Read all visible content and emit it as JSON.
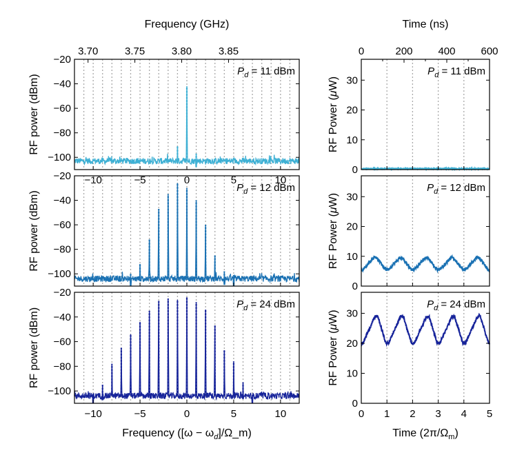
{
  "chart_data": [
    {
      "type": "line",
      "panel": "spectrum",
      "annotation": {
        "prefix": "P",
        "sub": "d",
        "text": " = 11 dBm"
      },
      "ylabel": "RF power (dBm)",
      "ylim": [
        -110,
        -20
      ],
      "yticks": [
        -20,
        -40,
        -60,
        -80,
        -100
      ],
      "xlim": [
        -12,
        12
      ],
      "xticks": [
        -10,
        -5,
        0,
        5,
        10
      ],
      "grid_x": [
        -11,
        -10,
        -9,
        -8,
        -7,
        -6,
        -5,
        -4,
        -3,
        -2,
        -1,
        0,
        1,
        2,
        3,
        4,
        5,
        6,
        7,
        8,
        9,
        10,
        11
      ],
      "top_xlabel": "Frequency (GHz)",
      "top_xticks": [
        "3.70",
        "3.75",
        "3.80",
        "3.85"
      ],
      "top_xtick_positions": [
        -10.55,
        -5.55,
        -0.55,
        4.45
      ],
      "noise_floor": -103,
      "color": "#3eb0d4",
      "peaks": {
        "x": [
          -1,
          0,
          1
        ],
        "y": [
          -91,
          -42,
          -97
        ]
      }
    },
    {
      "type": "line",
      "panel": "spectrum",
      "annotation": {
        "prefix": "P",
        "sub": "d",
        "text": " = 12 dBm"
      },
      "ylabel": "RF power (dBm)",
      "ylim": [
        -110,
        -20
      ],
      "yticks": [
        -20,
        -40,
        -60,
        -80,
        -100
      ],
      "xlim": [
        -12,
        12
      ],
      "grid_x": [
        -11,
        -10,
        -9,
        -8,
        -7,
        -6,
        -5,
        -4,
        -3,
        -2,
        -1,
        0,
        1,
        2,
        3,
        4,
        5,
        6,
        7,
        8,
        9,
        10,
        11
      ],
      "noise_floor": -104,
      "color": "#1a71b3",
      "peaks": {
        "x": [
          -6,
          -5,
          -4,
          -3,
          -2,
          -1,
          0,
          1,
          2,
          3,
          4,
          5
        ],
        "y": [
          -100,
          -92,
          -72,
          -47,
          -35,
          -26,
          -30,
          -40,
          -60,
          -85,
          -98,
          -101
        ]
      }
    },
    {
      "type": "line",
      "panel": "spectrum",
      "annotation": {
        "prefix": "P",
        "sub": "d",
        "text": " = 24 dBm"
      },
      "ylabel": "RF power (dBm)",
      "ylim": [
        -110,
        -20
      ],
      "yticks": [
        -20,
        -40,
        -60,
        -80,
        -100
      ],
      "xlim": [
        -12,
        12
      ],
      "xticks": [
        -10,
        -5,
        0,
        5,
        10
      ],
      "grid_x": [
        -11,
        -10,
        -9,
        -8,
        -7,
        -6,
        -5,
        -4,
        -3,
        -2,
        -1,
        0,
        1,
        2,
        3,
        4,
        5,
        6,
        7,
        8,
        9,
        10,
        11
      ],
      "xlabel": "Frequency ([ω − ω_d]/Ω_m)",
      "noise_floor": -104,
      "color": "#17249a",
      "peaks": {
        "x": [
          -10,
          -9,
          -8,
          -7,
          -6,
          -5,
          -4,
          -3,
          -2,
          -1,
          0,
          1,
          2,
          3,
          4,
          5,
          6,
          7
        ],
        "y": [
          -102,
          -95,
          -78,
          -65,
          -54,
          -44,
          -35,
          -27,
          -25,
          -26,
          -24,
          -28,
          -34,
          -47,
          -67,
          -76,
          -93,
          -103
        ]
      }
    },
    {
      "type": "line",
      "panel": "time",
      "annotation": {
        "prefix": "P",
        "sub": "d",
        "text": " = 11 dBm"
      },
      "ylabel": "RF Power (μW)",
      "ylim": [
        0,
        37
      ],
      "yticks": [
        0,
        10,
        20,
        30
      ],
      "xlim": [
        0,
        5
      ],
      "grid_x": [
        1,
        2,
        3,
        4
      ],
      "top_xlabel": "Time (ns)",
      "top_xticks": [
        "0",
        "200",
        "400",
        "600"
      ],
      "top_xtick_positions": [
        0,
        1.6667,
        3.3333,
        5
      ],
      "top_minor_positions": [
        0.8333,
        2.5,
        4.1667
      ],
      "color": "#3eb0d4",
      "signal": {
        "mean": 0.3,
        "amplitude": 0,
        "period": 1,
        "phase_max": 0.5
      }
    },
    {
      "type": "line",
      "panel": "time",
      "annotation": {
        "prefix": "P",
        "sub": "d",
        "text": " = 12 dBm"
      },
      "ylabel": "RF Power (μW)",
      "ylim": [
        0,
        37
      ],
      "yticks": [
        0,
        10,
        20,
        30
      ],
      "xlim": [
        0,
        5
      ],
      "grid_x": [
        1,
        2,
        3,
        4
      ],
      "color": "#1a71b3",
      "signal": {
        "mean": 7.5,
        "amplitude": 2,
        "period": 1,
        "phase_max": 0.55
      }
    },
    {
      "type": "line",
      "panel": "time",
      "annotation": {
        "prefix": "P",
        "sub": "d",
        "text": " = 24 dBm"
      },
      "ylabel": "RF Power (μW)",
      "ylim": [
        0,
        37
      ],
      "yticks": [
        0,
        10,
        20,
        30
      ],
      "xlim": [
        0,
        5
      ],
      "xticks": [
        0,
        1,
        2,
        3,
        4,
        5
      ],
      "grid_x": [
        1,
        2,
        3,
        4
      ],
      "xlabel": "Time (2π/Ω_m)",
      "color": "#17249a",
      "signal": {
        "mean": 24.5,
        "amplitude": 4.5,
        "period": 1,
        "phase_max": 0.6
      }
    }
  ]
}
